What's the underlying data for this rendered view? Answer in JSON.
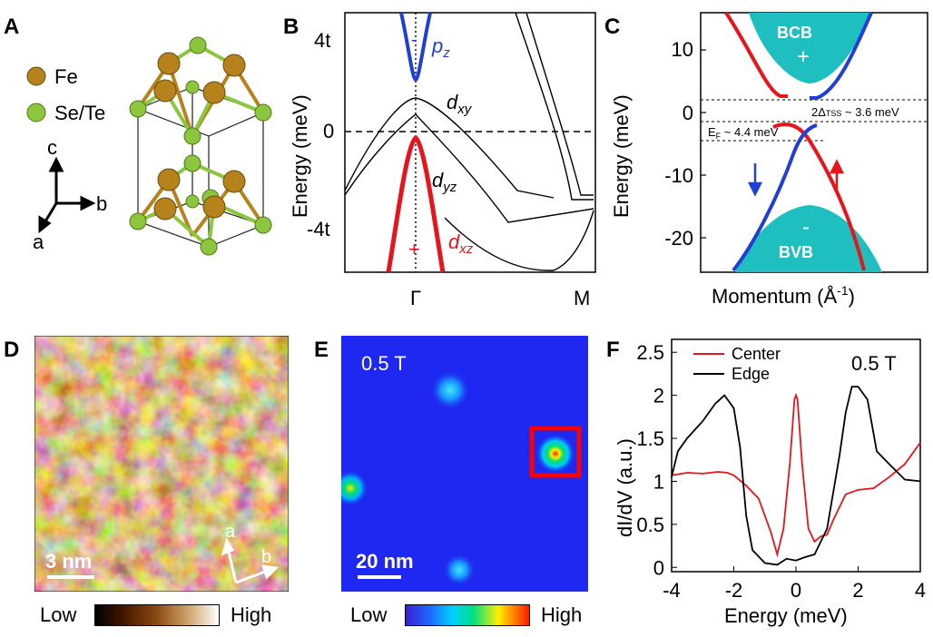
{
  "panels": {
    "A": {
      "label": "A",
      "legend": [
        {
          "name": "Fe",
          "color": "#b5821c"
        },
        {
          "name": "Se/Te",
          "color": "#8cc63f"
        }
      ],
      "axes": {
        "c": "c",
        "b": "b",
        "a": "a"
      }
    },
    "B": {
      "label": "B",
      "ylabel": "Energy (meV)",
      "yticks": [
        "4t",
        "0",
        "-4t"
      ],
      "xticks": [
        "Γ",
        "M"
      ],
      "band_labels": {
        "pz": "p",
        "pz_sub": "z",
        "dxy": "d",
        "dxy_sub": "xy",
        "dyz": "d",
        "dyz_sub": "yz",
        "dxz": "d",
        "dxz_sub": "xz"
      },
      "signs": {
        "pz": "-",
        "dxz": "+"
      },
      "colors": {
        "pz": "#1f3fd6",
        "dxz": "#e8141b",
        "dark": "#000000"
      }
    },
    "C": {
      "label": "C",
      "ylabel": "Energy (meV)",
      "xlabel": "Momentum (Å",
      "xlabel_sup": "-1",
      "xlabel_end": ")",
      "yticks": [
        10,
        0,
        -10,
        -20
      ],
      "ylim": [
        -26,
        15
      ],
      "bcb_label": "BCB",
      "bcb_sign": "+",
      "bvb_label": "BVB",
      "bvb_sign": "-",
      "gap_label": "2Δ",
      "gap_sub": "TSS",
      "gap_value": " ~ 3.6 meV",
      "ef_label": "E",
      "ef_sub": "F",
      "ef_value": " ~ 4.4 meV",
      "colors": {
        "band": "#1fbfbf",
        "up": "#e8141b",
        "down": "#1f3fd6"
      }
    },
    "D": {
      "label": "D",
      "scalebar": "3 nm",
      "dir_a": "a",
      "dir_b": "b",
      "cbar_low": "Low",
      "cbar_high": "High"
    },
    "E": {
      "label": "E",
      "field": "0.5 T",
      "scalebar": "20 nm",
      "cbar_low": "Low",
      "cbar_high": "High"
    },
    "F": {
      "label": "F",
      "field": "0.5 T",
      "ylabel": "dI/dV (a.u.)",
      "xlabel": "Energy (meV)",
      "yticks": [
        0,
        0.5,
        1.0,
        1.5,
        2.0,
        2.5
      ],
      "xticks": [
        -4,
        -2,
        0,
        2,
        4
      ],
      "xlim": [
        -4,
        4
      ],
      "ylim": [
        -0.05,
        2.65
      ]
    }
  },
  "chart_data": [
    {
      "type": "line",
      "title": "",
      "xlabel": "Energy (meV)",
      "ylabel": "dI/dV (a.u.)",
      "xlim": [
        -4,
        4
      ],
      "ylim": [
        -0.05,
        2.65
      ],
      "legend_position": "top-left",
      "series": [
        {
          "name": "Center",
          "color": "#e8141b",
          "x": [
            -4,
            -3.5,
            -3.0,
            -2.5,
            -2.2,
            -2.0,
            -1.6,
            -1.2,
            -1.0,
            -0.8,
            -0.6,
            -0.4,
            -0.2,
            -0.05,
            0,
            0.05,
            0.2,
            0.4,
            0.6,
            0.8,
            1.0,
            1.2,
            1.6,
            2.0,
            2.5,
            3.0,
            3.5,
            4.0
          ],
          "y": [
            1.07,
            1.1,
            1.09,
            1.11,
            1.1,
            1.07,
            0.95,
            0.8,
            0.6,
            0.4,
            0.15,
            0.45,
            1.2,
            1.95,
            2.0,
            1.95,
            1.2,
            0.45,
            0.3,
            0.36,
            0.38,
            0.55,
            0.85,
            0.9,
            0.92,
            1.05,
            1.2,
            1.45
          ]
        },
        {
          "name": "Edge",
          "color": "#000000",
          "x": [
            -4,
            -3.8,
            -3.5,
            -3.0,
            -2.6,
            -2.3,
            -2.0,
            -1.8,
            -1.6,
            -1.4,
            -1.0,
            -0.6,
            -0.3,
            0,
            0.3,
            0.6,
            1.0,
            1.4,
            1.6,
            1.8,
            2.0,
            2.3,
            2.6,
            3.0,
            3.5,
            4.0
          ],
          "y": [
            1.05,
            1.35,
            1.5,
            1.7,
            1.9,
            2.0,
            1.85,
            1.4,
            0.6,
            0.2,
            0.05,
            0.03,
            0.1,
            0.08,
            0.12,
            0.15,
            0.45,
            1.3,
            1.8,
            2.1,
            2.1,
            1.95,
            1.35,
            1.2,
            1.02,
            1.0
          ]
        }
      ]
    }
  ]
}
